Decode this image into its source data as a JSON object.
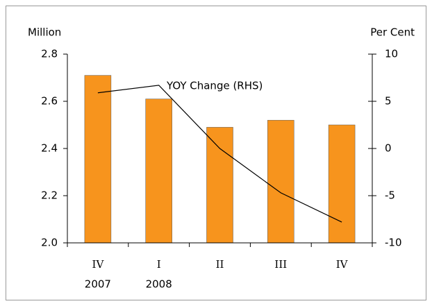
{
  "chart_data": {
    "type": "bar",
    "y_axis_label": "Million",
    "y2_axis_label": "Per Cent",
    "annotation": "YOY Change (RHS)",
    "categories": [
      "IV",
      "I",
      "II",
      "III",
      "IV"
    ],
    "years": [
      "2007",
      "2008",
      null,
      null,
      null
    ],
    "series": [
      {
        "name": "Million",
        "type": "bar",
        "color": "#f7941d",
        "values": [
          2.71,
          2.61,
          2.49,
          2.52,
          2.5
        ]
      },
      {
        "name": "YOY Change (RHS)",
        "type": "line",
        "axis": "y2",
        "color": "#000000",
        "values": [
          5.9,
          6.7,
          0,
          -4.7,
          -7.8
        ]
      }
    ],
    "ylim": [
      2.0,
      2.8
    ],
    "yticks": [
      {
        "value": 2.0,
        "label": "2.0"
      },
      2.2,
      2.4,
      2.6,
      2.8
    ],
    "y2lim": [
      -10,
      10
    ],
    "y2ticks": [
      -10,
      -5,
      0,
      5,
      10
    ],
    "grid": false
  }
}
